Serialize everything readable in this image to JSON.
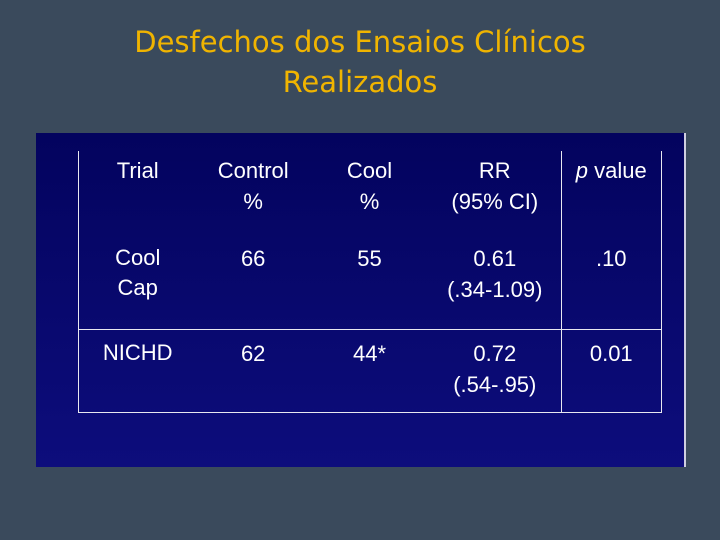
{
  "title": {
    "line1": "Desfechos dos Ensaios Clínicos",
    "line2": "Realizados"
  },
  "table": {
    "headers": {
      "trial": "Trial",
      "control_line1": "Control",
      "control_line2": "%",
      "cool_line1": "Cool",
      "cool_line2": "%",
      "rr_line1": "RR",
      "rr_line2": "(95% CI)",
      "p_italic": "p",
      "p_rest": " value"
    },
    "rows": [
      {
        "trial_line1": "Cool",
        "trial_line2": "Cap",
        "control": "66",
        "cool": "55",
        "rr_line1": "0.61",
        "rr_line2": "(.34-1.09)",
        "p_value": ".10"
      },
      {
        "trial_line1": "NICHD",
        "trial_line2": "",
        "control": "62",
        "cool": "44*",
        "rr_line1": "0.72",
        "rr_line2": "(.54-.95)",
        "p_value": "0.01"
      }
    ]
  },
  "colors": {
    "background": "#3a4a5c",
    "title": "#f0b400",
    "panel": "#07076a",
    "text": "#ffffff"
  }
}
